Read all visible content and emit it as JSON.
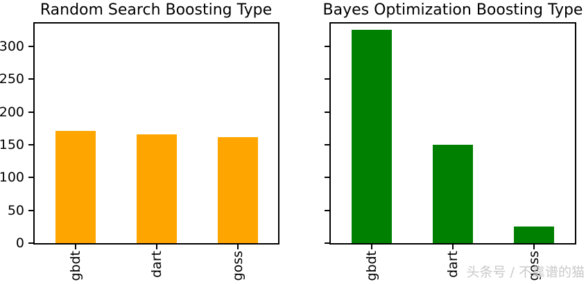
{
  "page": {
    "background": "#ffffff",
    "text_color": "#000000"
  },
  "watermark": {
    "text": "头条号 / 不靠谱的猫",
    "color": "#c9c9c9"
  },
  "chart_data": [
    {
      "type": "bar",
      "title": "Random Search Boosting Type",
      "categories": [
        "gbdt",
        "dart",
        "goss"
      ],
      "values": [
        171,
        166,
        162
      ],
      "bar_color": "#ffa500",
      "xlabel": "",
      "ylabel": "",
      "yticks": [
        0,
        50,
        100,
        150,
        200,
        250,
        300
      ],
      "ylim": [
        0,
        335
      ],
      "show_ytick_labels": true,
      "xtick_rotation": 90,
      "grid": false,
      "legend": "none"
    },
    {
      "type": "bar",
      "title": "Bayes Optimization Boosting Type",
      "categories": [
        "gbdt",
        "dart",
        "goss"
      ],
      "values": [
        325,
        150,
        25
      ],
      "bar_color": "#008000",
      "xlabel": "",
      "ylabel": "",
      "yticks": [
        0,
        50,
        100,
        150,
        200,
        250,
        300
      ],
      "ylim": [
        0,
        335
      ],
      "show_ytick_labels": false,
      "xtick_rotation": 90,
      "grid": false,
      "legend": "none"
    }
  ]
}
